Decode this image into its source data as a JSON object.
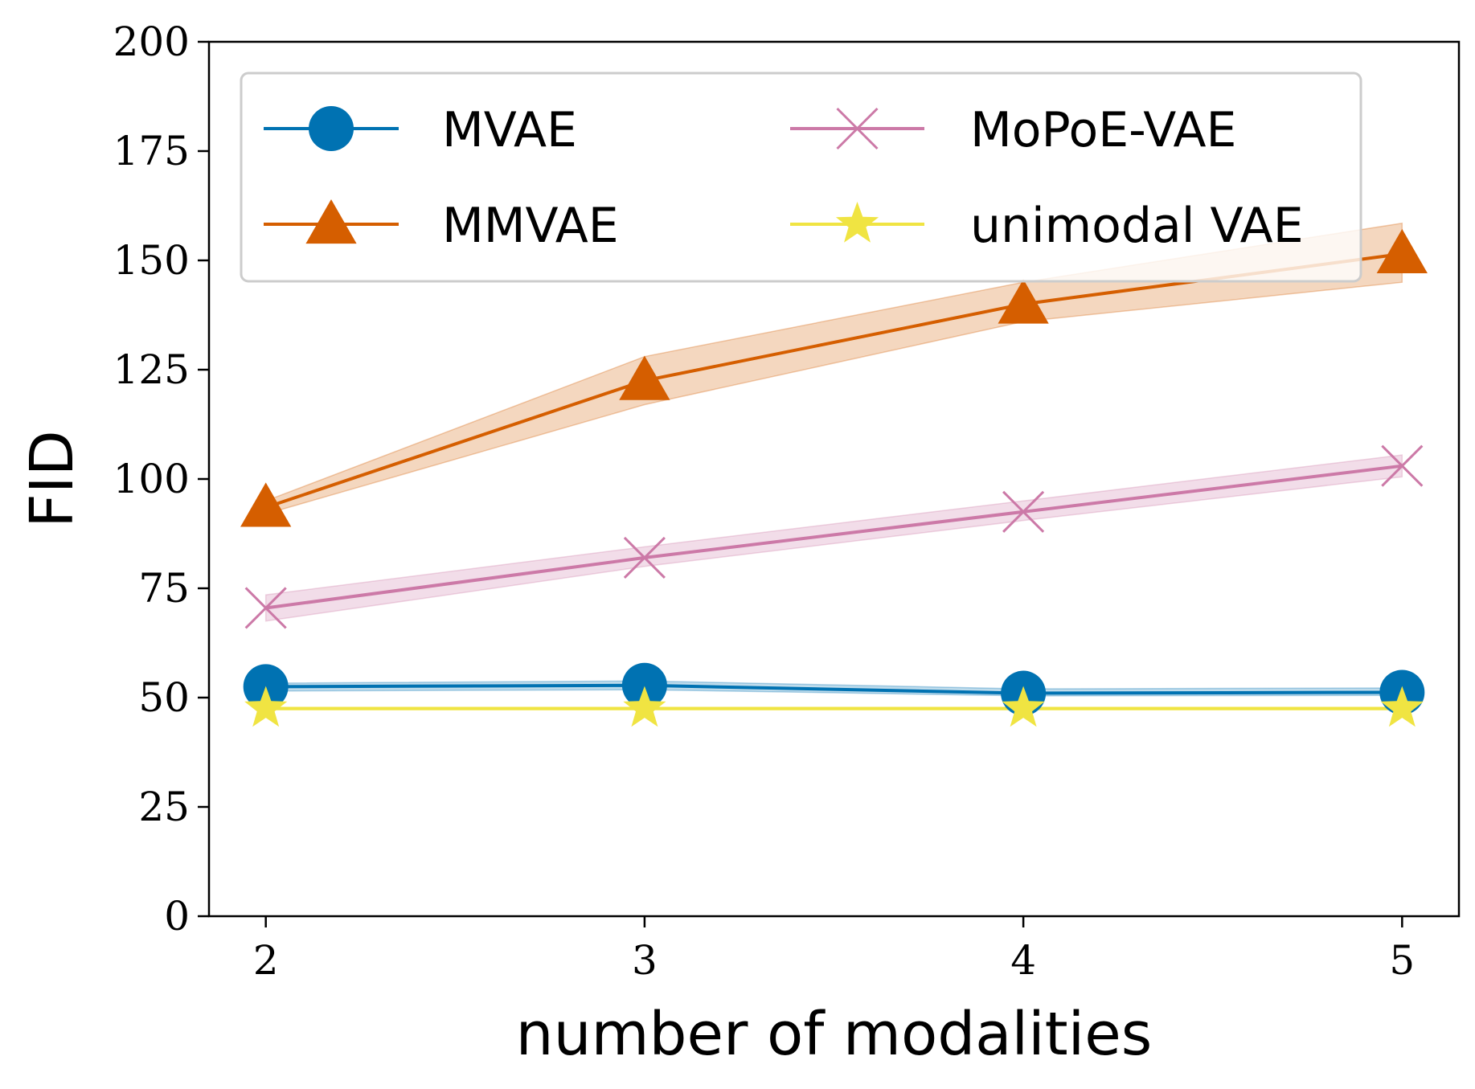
{
  "chart_data": {
    "type": "line",
    "title": "",
    "xlabel": "number of modalities",
    "ylabel": "FID",
    "x": [
      2,
      3,
      4,
      5
    ],
    "xticks": [
      "2",
      "3",
      "4",
      "5"
    ],
    "ylim": [
      0,
      200
    ],
    "yticks": [
      "0",
      "25",
      "50",
      "75",
      "100",
      "125",
      "150",
      "175",
      "200"
    ],
    "grid": false,
    "legend_position": "top",
    "series": [
      {
        "name": "MVAE",
        "color": "#0072b2",
        "marker": "circle",
        "values": [
          52.5,
          52.8,
          51.0,
          51.2
        ],
        "lower": [
          51.5,
          51.8,
          50.4,
          50.5
        ],
        "upper": [
          53.3,
          53.8,
          52.0,
          52.2
        ]
      },
      {
        "name": "MMVAE",
        "color": "#d55e00",
        "marker": "triangle",
        "values": [
          93.5,
          122.5,
          140.0,
          151.5
        ],
        "lower": [
          92.0,
          117.0,
          136.0,
          145.0
        ],
        "upper": [
          95.0,
          128.0,
          145.0,
          158.5
        ]
      },
      {
        "name": "MoPoE-VAE",
        "color": "#cc79a7",
        "marker": "x",
        "values": [
          70.5,
          82.0,
          92.5,
          103.0
        ],
        "lower": [
          67.5,
          80.0,
          90.5,
          100.5
        ],
        "upper": [
          73.5,
          84.5,
          95.0,
          105.5
        ]
      },
      {
        "name": "unimodal VAE",
        "color": "#f0e442",
        "marker": "star",
        "values": [
          47.5,
          47.5,
          47.5,
          47.5
        ],
        "lower": [
          47.2,
          47.2,
          47.2,
          47.2
        ],
        "upper": [
          47.8,
          47.8,
          47.8,
          47.8
        ]
      }
    ]
  }
}
